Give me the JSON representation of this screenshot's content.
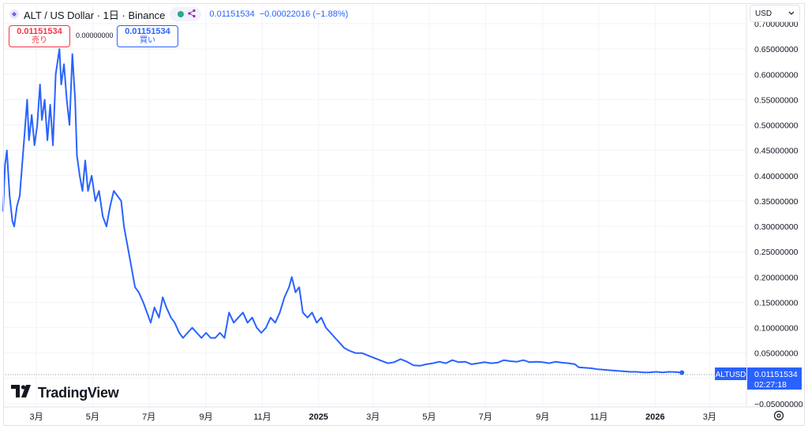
{
  "header": {
    "title": "ALT / US Dollar · 1日 · Binance",
    "ohlc_price": "0.01151534",
    "ohlc_change": "−0.00022016 (−1.88%)"
  },
  "trade": {
    "sell_price": "0.01151534",
    "sell_label": "売り",
    "spread": "0.00000000",
    "buy_price": "0.01151534",
    "buy_label": "買い"
  },
  "currency": {
    "value": "USD"
  },
  "logo": {
    "text": "TradingView"
  },
  "price_tag": {
    "symbol": "ALTUSD",
    "price": "0.01151534",
    "countdown": "02:27:18"
  },
  "colors": {
    "line": "#2962ff",
    "sell": "#f23645",
    "buy": "#2962ff",
    "grid": "#f0f3fa"
  },
  "icons": {
    "symbol": "alt-logo-icon",
    "status": "share-icon",
    "settings": "gear-icon",
    "chevron": "chevron-down-icon"
  },
  "chart_data": {
    "type": "line",
    "ylim": [
      -0.05,
      0.7
    ],
    "y_ticks": [
      0.7,
      0.65,
      0.6,
      0.55,
      0.5,
      0.45,
      0.4,
      0.35,
      0.3,
      0.25,
      0.2,
      0.15,
      0.1,
      0.05,
      0,
      -0.05
    ],
    "y_tick_labels": [
      "0.70000000",
      "0.65000000",
      "0.60000000",
      "0.55000000",
      "0.50000000",
      "0.45000000",
      "0.40000000",
      "0.35000000",
      "0.30000000",
      "0.25000000",
      "0.20000000",
      "0.15000000",
      "0.10000000",
      "0.05000000",
      "",
      "−0.05000000"
    ],
    "x_ticks": [
      {
        "date": "2024-03-01",
        "label": "3月"
      },
      {
        "date": "2024-05-01",
        "label": "5月"
      },
      {
        "date": "2024-07-01",
        "label": "7月"
      },
      {
        "date": "2024-09-01",
        "label": "9月"
      },
      {
        "date": "2024-11-01",
        "label": "11月"
      },
      {
        "date": "2025-01-01",
        "label": "2025"
      },
      {
        "date": "2025-03-01",
        "label": "3月"
      },
      {
        "date": "2025-05-01",
        "label": "5月"
      },
      {
        "date": "2025-07-01",
        "label": "7月"
      },
      {
        "date": "2025-09-01",
        "label": "9月"
      },
      {
        "date": "2025-11-01",
        "label": "11月"
      },
      {
        "date": "2026-01-01",
        "label": "2026"
      },
      {
        "date": "2026-03-01",
        "label": "3月"
      }
    ],
    "x_range": [
      "2024-01-25",
      "2026-04-10"
    ],
    "grid": true,
    "series": [
      {
        "points": [
          [
            "2024-01-25",
            0.33
          ],
          [
            "2024-01-27",
            0.42
          ],
          [
            "2024-01-29",
            0.45
          ],
          [
            "2024-02-01",
            0.36
          ],
          [
            "2024-02-04",
            0.31
          ],
          [
            "2024-02-06",
            0.3
          ],
          [
            "2024-02-09",
            0.34
          ],
          [
            "2024-02-12",
            0.36
          ],
          [
            "2024-02-15",
            0.43
          ],
          [
            "2024-02-18",
            0.5
          ],
          [
            "2024-02-20",
            0.55
          ],
          [
            "2024-02-22",
            0.47
          ],
          [
            "2024-02-25",
            0.52
          ],
          [
            "2024-02-28",
            0.46
          ],
          [
            "2024-03-02",
            0.5
          ],
          [
            "2024-03-05",
            0.58
          ],
          [
            "2024-03-07",
            0.51
          ],
          [
            "2024-03-10",
            0.55
          ],
          [
            "2024-03-13",
            0.47
          ],
          [
            "2024-03-16",
            0.54
          ],
          [
            "2024-03-19",
            0.46
          ],
          [
            "2024-03-22",
            0.6
          ],
          [
            "2024-03-26",
            0.65
          ],
          [
            "2024-03-28",
            0.58
          ],
          [
            "2024-03-31",
            0.62
          ],
          [
            "2024-04-03",
            0.55
          ],
          [
            "2024-04-06",
            0.5
          ],
          [
            "2024-04-09",
            0.64
          ],
          [
            "2024-04-12",
            0.55
          ],
          [
            "2024-04-14",
            0.44
          ],
          [
            "2024-04-17",
            0.4
          ],
          [
            "2024-04-20",
            0.37
          ],
          [
            "2024-04-23",
            0.43
          ],
          [
            "2024-04-26",
            0.37
          ],
          [
            "2024-04-30",
            0.4
          ],
          [
            "2024-05-04",
            0.35
          ],
          [
            "2024-05-08",
            0.37
          ],
          [
            "2024-05-12",
            0.32
          ],
          [
            "2024-05-16",
            0.3
          ],
          [
            "2024-05-20",
            0.34
          ],
          [
            "2024-05-24",
            0.37
          ],
          [
            "2024-05-28",
            0.36
          ],
          [
            "2024-06-01",
            0.35
          ],
          [
            "2024-06-04",
            0.3
          ],
          [
            "2024-06-08",
            0.26
          ],
          [
            "2024-06-12",
            0.22
          ],
          [
            "2024-06-16",
            0.18
          ],
          [
            "2024-06-20",
            0.17
          ],
          [
            "2024-06-25",
            0.15
          ],
          [
            "2024-06-29",
            0.13
          ],
          [
            "2024-07-03",
            0.11
          ],
          [
            "2024-07-07",
            0.14
          ],
          [
            "2024-07-12",
            0.12
          ],
          [
            "2024-07-16",
            0.16
          ],
          [
            "2024-07-20",
            0.14
          ],
          [
            "2024-07-25",
            0.12
          ],
          [
            "2024-07-29",
            0.11
          ],
          [
            "2024-08-03",
            0.09
          ],
          [
            "2024-08-07",
            0.08
          ],
          [
            "2024-08-12",
            0.09
          ],
          [
            "2024-08-17",
            0.1
          ],
          [
            "2024-08-22",
            0.09
          ],
          [
            "2024-08-27",
            0.08
          ],
          [
            "2024-09-01",
            0.09
          ],
          [
            "2024-09-06",
            0.08
          ],
          [
            "2024-09-11",
            0.08
          ],
          [
            "2024-09-16",
            0.09
          ],
          [
            "2024-09-21",
            0.08
          ],
          [
            "2024-09-26",
            0.13
          ],
          [
            "2024-10-01",
            0.11
          ],
          [
            "2024-10-06",
            0.12
          ],
          [
            "2024-10-11",
            0.13
          ],
          [
            "2024-10-16",
            0.11
          ],
          [
            "2024-10-21",
            0.12
          ],
          [
            "2024-10-26",
            0.1
          ],
          [
            "2024-10-31",
            0.09
          ],
          [
            "2024-11-05",
            0.1
          ],
          [
            "2024-11-10",
            0.12
          ],
          [
            "2024-11-15",
            0.11
          ],
          [
            "2024-11-20",
            0.13
          ],
          [
            "2024-11-25",
            0.16
          ],
          [
            "2024-11-30",
            0.18
          ],
          [
            "2024-12-03",
            0.2
          ],
          [
            "2024-12-07",
            0.17
          ],
          [
            "2024-12-11",
            0.18
          ],
          [
            "2024-12-15",
            0.13
          ],
          [
            "2024-12-20",
            0.12
          ],
          [
            "2024-12-25",
            0.13
          ],
          [
            "2024-12-30",
            0.11
          ],
          [
            "2025-01-04",
            0.12
          ],
          [
            "2025-01-09",
            0.1
          ],
          [
            "2025-01-14",
            0.09
          ],
          [
            "2025-01-19",
            0.08
          ],
          [
            "2025-01-24",
            0.07
          ],
          [
            "2025-01-29",
            0.06
          ],
          [
            "2025-02-03",
            0.055
          ],
          [
            "2025-02-10",
            0.05
          ],
          [
            "2025-02-17",
            0.05
          ],
          [
            "2025-02-24",
            0.045
          ],
          [
            "2025-03-03",
            0.04
          ],
          [
            "2025-03-10",
            0.035
          ],
          [
            "2025-03-17",
            0.03
          ],
          [
            "2025-03-24",
            0.032
          ],
          [
            "2025-03-31",
            0.038
          ],
          [
            "2025-04-07",
            0.033
          ],
          [
            "2025-04-14",
            0.026
          ],
          [
            "2025-04-21",
            0.025
          ],
          [
            "2025-04-28",
            0.028
          ],
          [
            "2025-05-05",
            0.03
          ],
          [
            "2025-05-12",
            0.033
          ],
          [
            "2025-05-19",
            0.03
          ],
          [
            "2025-05-26",
            0.036
          ],
          [
            "2025-06-02",
            0.032
          ],
          [
            "2025-06-09",
            0.033
          ],
          [
            "2025-06-16",
            0.028
          ],
          [
            "2025-06-23",
            0.03
          ],
          [
            "2025-06-30",
            0.032
          ],
          [
            "2025-07-07",
            0.03
          ],
          [
            "2025-07-14",
            0.031
          ],
          [
            "2025-07-21",
            0.036
          ],
          [
            "2025-07-28",
            0.034
          ],
          [
            "2025-08-04",
            0.033
          ],
          [
            "2025-08-11",
            0.036
          ],
          [
            "2025-08-18",
            0.032
          ],
          [
            "2025-08-25",
            0.033
          ],
          [
            "2025-09-01",
            0.032
          ],
          [
            "2025-09-08",
            0.03
          ],
          [
            "2025-09-15",
            0.033
          ],
          [
            "2025-09-22",
            0.031
          ],
          [
            "2025-09-29",
            0.03
          ],
          [
            "2025-10-06",
            0.028
          ],
          [
            "2025-10-10",
            0.022
          ],
          [
            "2025-10-17",
            0.021
          ],
          [
            "2025-10-24",
            0.02
          ],
          [
            "2025-10-31",
            0.018
          ],
          [
            "2025-11-07",
            0.017
          ],
          [
            "2025-11-14",
            0.016
          ],
          [
            "2025-11-21",
            0.015
          ],
          [
            "2025-11-28",
            0.014
          ],
          [
            "2025-12-05",
            0.013
          ],
          [
            "2025-12-12",
            0.013
          ],
          [
            "2025-12-19",
            0.012
          ],
          [
            "2025-12-26",
            0.012
          ],
          [
            "2026-01-02",
            0.013
          ],
          [
            "2026-01-09",
            0.012
          ],
          [
            "2026-01-16",
            0.013
          ],
          [
            "2026-01-23",
            0.0125
          ],
          [
            "2026-01-30",
            0.0115
          ]
        ]
      }
    ]
  }
}
